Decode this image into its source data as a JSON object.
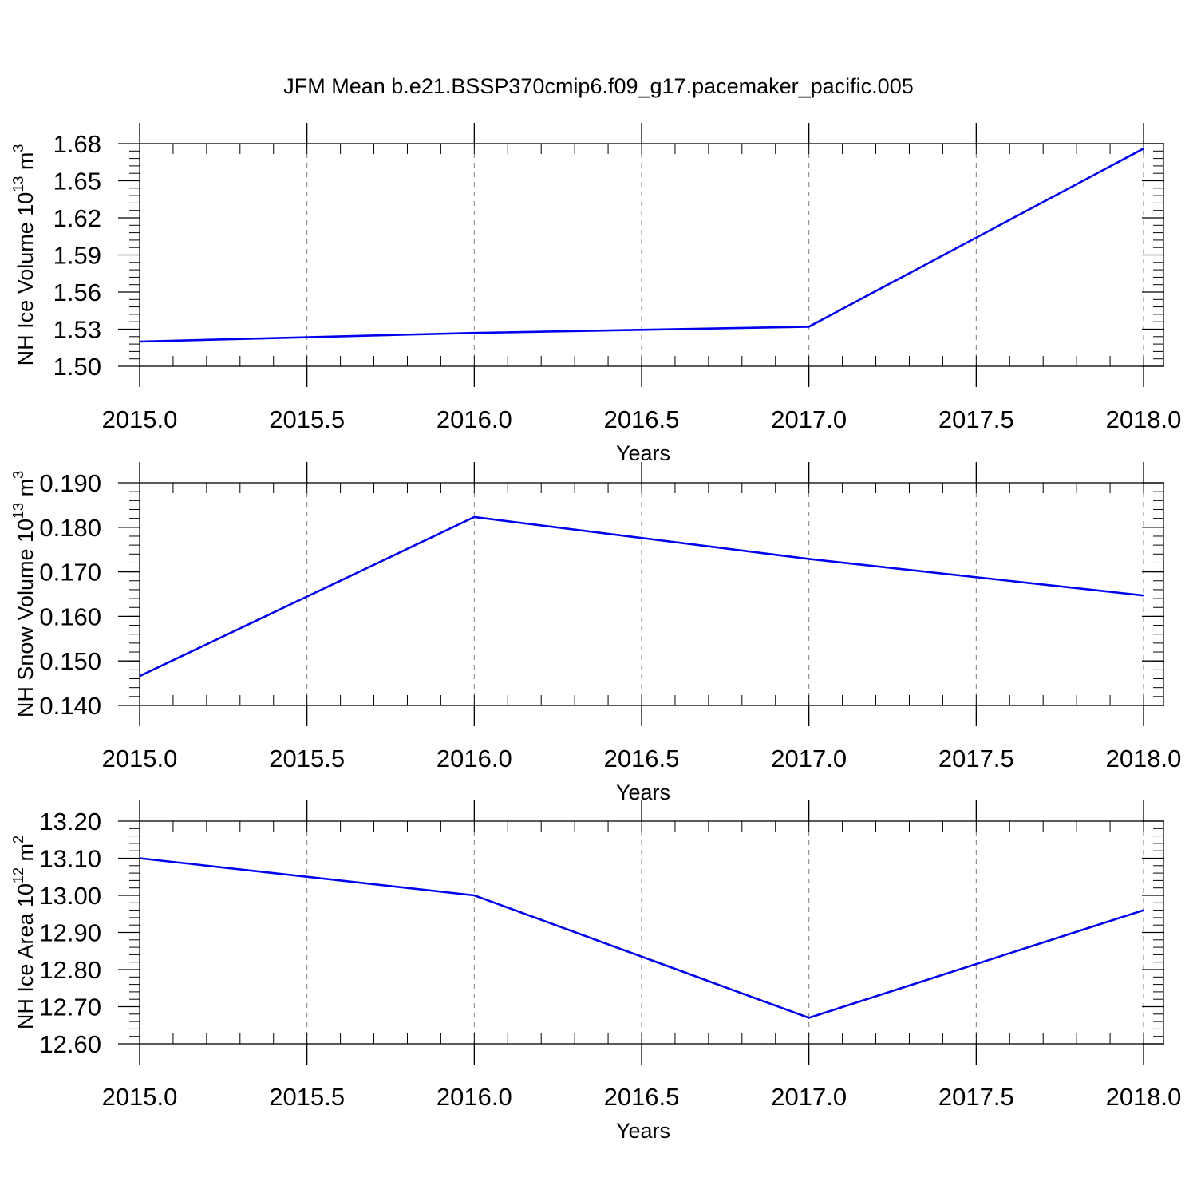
{
  "title": "JFM Mean b.e21.BSSP370cmip6.f09_g17.pacemaker_pacific.005",
  "colors": {
    "line": "#0000ee",
    "axis": "#000000",
    "grid": "#808080"
  },
  "chart_data": [
    {
      "type": "line",
      "ylabel_main": "NH Ice Volume 10",
      "ylabel_exp": "13",
      "ylabel_unit": "m",
      "ylabel_unit_exp": "3",
      "xlabel": "Years",
      "x": [
        2015,
        2016,
        2017,
        2018
      ],
      "values": [
        1.52,
        1.527,
        1.532,
        1.676
      ],
      "xlim": [
        2015,
        2018
      ],
      "ylim": [
        1.5,
        1.68
      ],
      "xticks": [
        "2015.0",
        "2015.5",
        "2016.0",
        "2016.5",
        "2017.0",
        "2017.5",
        "2018.0"
      ],
      "yticks": [
        "1.50",
        "1.53",
        "1.56",
        "1.59",
        "1.62",
        "1.65",
        "1.68"
      ],
      "grid": "vertical dashed"
    },
    {
      "type": "line",
      "ylabel_main": "NH Snow Volume 10",
      "ylabel_exp": "13",
      "ylabel_unit": "m",
      "ylabel_unit_exp": "3",
      "xlabel": "Years",
      "x": [
        2015,
        2016,
        2017,
        2018
      ],
      "values": [
        0.1466,
        0.1823,
        0.1729,
        0.1647
      ],
      "xlim": [
        2015,
        2018
      ],
      "ylim": [
        0.14,
        0.19
      ],
      "xticks": [
        "2015.0",
        "2015.5",
        "2016.0",
        "2016.5",
        "2017.0",
        "2017.5",
        "2018.0"
      ],
      "yticks": [
        "0.140",
        "0.150",
        "0.160",
        "0.170",
        "0.180",
        "0.190"
      ],
      "grid": "vertical dashed"
    },
    {
      "type": "line",
      "ylabel_main": "NH Ice Area 10",
      "ylabel_exp": "12",
      "ylabel_unit": "m",
      "ylabel_unit_exp": "2",
      "xlabel": "Years",
      "x": [
        2015,
        2016,
        2017,
        2018
      ],
      "values": [
        13.1,
        13.0,
        12.67,
        12.96
      ],
      "xlim": [
        2015,
        2018
      ],
      "ylim": [
        12.6,
        13.2
      ],
      "xticks": [
        "2015.0",
        "2015.5",
        "2016.0",
        "2016.5",
        "2017.0",
        "2017.5",
        "2018.0"
      ],
      "yticks": [
        "12.60",
        "12.70",
        "12.80",
        "12.90",
        "13.00",
        "13.10",
        "13.20"
      ],
      "grid": "vertical dashed"
    }
  ]
}
